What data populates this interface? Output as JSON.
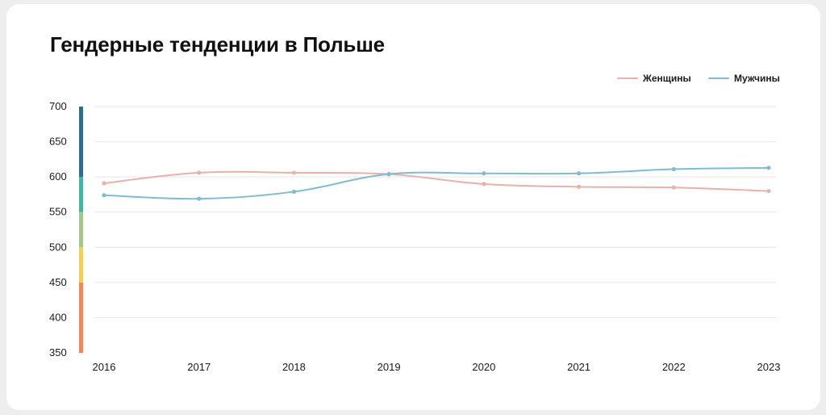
{
  "chart_data": {
    "type": "line",
    "title": "Гендерные тенденции в Польше",
    "xlabel": "",
    "ylabel": "",
    "categories": [
      "2016",
      "2017",
      "2018",
      "2019",
      "2020",
      "2021",
      "2022",
      "2023"
    ],
    "series": [
      {
        "name": "Женщины",
        "color": "#e8b2ab",
        "values": [
          591,
          606,
          606,
          604,
          590,
          586,
          585,
          580
        ]
      },
      {
        "name": "Мужчины",
        "color": "#7fbcd2",
        "values": [
          574,
          569,
          579,
          604,
          605,
          605,
          611,
          613
        ]
      }
    ],
    "ylim": [
      350,
      700
    ],
    "yticks": [
      "350",
      "400",
      "450",
      "500",
      "550",
      "600",
      "650",
      "700"
    ],
    "grid": true,
    "legend_position": "top-right",
    "level_bands": [
      {
        "from": 350,
        "to": 450,
        "color": "#ee8a57"
      },
      {
        "from": 450,
        "to": 500,
        "color": "#f2d14f"
      },
      {
        "from": 500,
        "to": 550,
        "color": "#a6c68a"
      },
      {
        "from": 550,
        "to": 600,
        "color": "#3fb7a3"
      },
      {
        "from": 600,
        "to": 700,
        "color": "#2f6d8f"
      }
    ]
  }
}
